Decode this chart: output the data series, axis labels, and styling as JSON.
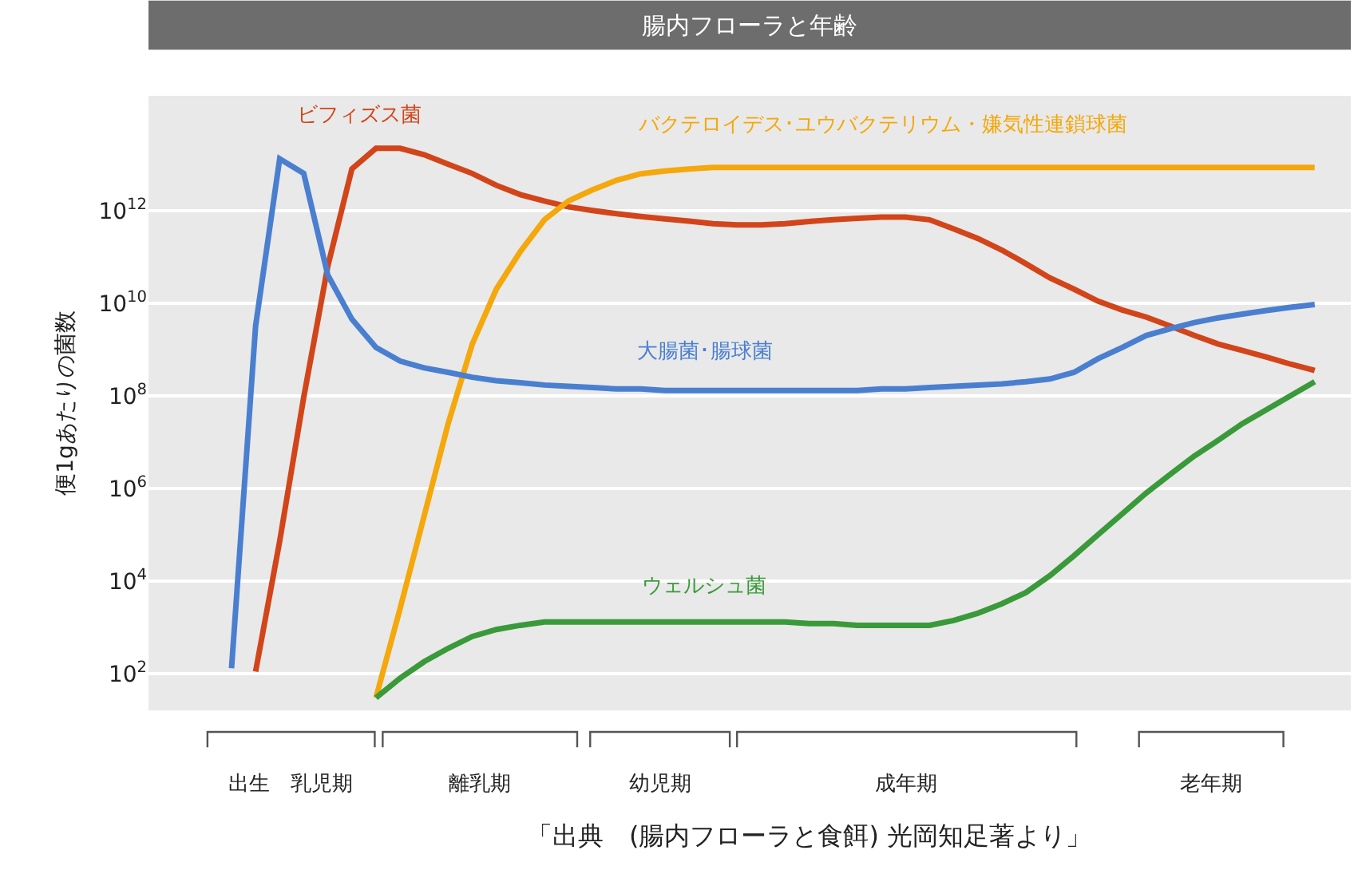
{
  "chart_data": {
    "type": "line",
    "title": "腸内フローラと年齢",
    "ylabel": "便1gあたりの菌数",
    "log": "y",
    "grid": "y",
    "tick_labels": "y",
    "marker": "none",
    "line_style": "solid",
    "categories": [
      null,
      null,
      null,
      null,
      null,
      null,
      null,
      null,
      null,
      null,
      null,
      null,
      null,
      null,
      null,
      null,
      null,
      null,
      null,
      null,
      null,
      null,
      null,
      null,
      null,
      null,
      null,
      null,
      null,
      null,
      null,
      null,
      null,
      null,
      null,
      null,
      null,
      null,
      null,
      null,
      null,
      null,
      null,
      null,
      null,
      null,
      null
    ],
    "ylim": [
      16,
      300000000000000.0
    ],
    "yticks": [
      {
        "value": 100,
        "label": "10$^{2}$"
      },
      {
        "value": 10000,
        "label": "10$^{4}$"
      },
      {
        "value": 1000000,
        "label": "10$^{6}$"
      },
      {
        "value": 100000000,
        "label": "10$^{8}$"
      },
      {
        "value": 10000000000,
        "label": "10$^{10}$"
      },
      {
        "value": 1000000000000,
        "label": "10$^{12}$"
      }
    ],
    "series": [
      {
        "name": "ビフィズス菌",
        "color": "#d2451a",
        "values": [
          null,
          null,
          110.0,
          72000.0,
          93000000.0,
          63000000000.0,
          7900000000000.0,
          22000000000000.0,
          22000000000000.0,
          16000000000000.0,
          10000000000000.0,
          6300000000000.0,
          3500000000000.0,
          2200000000000.0,
          1600000000000.0,
          1200000000000.0,
          1000000000000.0,
          850000000000.0,
          740000000000.0,
          660000000000.0,
          590000000000.0,
          520000000000.0,
          490000000000.0,
          490000000000.0,
          520000000000.0,
          580000000000.0,
          630000000000.0,
          680000000000.0,
          720000000000.0,
          720000000000.0,
          630000000000.0,
          400000000000.0,
          250000000000.0,
          140000000000.0,
          71000000000.0,
          35000000000.0,
          20000000000.0,
          11000000000.0,
          7100000000.0,
          5000000000.0,
          3200000000.0,
          2000000000.0,
          1300000000.0,
          950000000.0,
          680000000.0,
          480000000.0,
          350000000.0
        ]
      },
      {
        "name": "バクテロイデス･ユウバクテリウム・嫌気性連鎖球菌",
        "color": "#f4a80c",
        "values": [
          null,
          null,
          null,
          null,
          null,
          null,
          null,
          30.0,
          2500.0,
          250000.0,
          25000000.0,
          1300000000.0,
          20000000000.0,
          130000000000.0,
          630000000000.0,
          1600000000000.0,
          2800000000000.0,
          4500000000000.0,
          6200000000000.0,
          7100000000000.0,
          7900000000000.0,
          8500000000000.0,
          8500000000000.0,
          8500000000000.0,
          8500000000000.0,
          8500000000000.0,
          8500000000000.0,
          8500000000000.0,
          8500000000000.0,
          8500000000000.0,
          8500000000000.0,
          8500000000000.0,
          8500000000000.0,
          8500000000000.0,
          8500000000000.0,
          8500000000000.0,
          8500000000000.0,
          8500000000000.0,
          8500000000000.0,
          8500000000000.0,
          8500000000000.0,
          8500000000000.0,
          8500000000000.0,
          8500000000000.0,
          8500000000000.0,
          8500000000000.0,
          8500000000000.0
        ]
      },
      {
        "name": "大腸菌･腸球菌",
        "color": "#4a7fd0",
        "values": [
          null,
          130.0,
          3200000000.0,
          13000000000000.0,
          6300000000000.0,
          40000000000.0,
          4500000000.0,
          1100000000.0,
          560000000.0,
          400000000.0,
          320000000.0,
          250000000.0,
          210000000.0,
          190000000.0,
          170000000.0,
          160000000.0,
          150000000.0,
          140000000.0,
          140000000.0,
          130000000.0,
          130000000.0,
          130000000.0,
          130000000.0,
          130000000.0,
          130000000.0,
          130000000.0,
          130000000.0,
          130000000.0,
          140000000.0,
          140000000.0,
          150000000.0,
          160000000.0,
          170000000.0,
          180000000.0,
          200000000.0,
          230000000.0,
          320000000.0,
          630000000.0,
          1100000000.0,
          2000000000.0,
          2800000000.0,
          3800000000.0,
          4800000000.0,
          5800000000.0,
          6900000000.0,
          8100000000.0,
          9300000000.0
        ]
      },
      {
        "name": "ウェルシュ菌",
        "color": "#3a9a3a",
        "values": [
          null,
          null,
          null,
          null,
          null,
          null,
          null,
          30.0,
          79.0,
          180.0,
          350.0,
          630.0,
          890.0,
          1100.0,
          1300.0,
          1300.0,
          1300.0,
          1300.0,
          1300.0,
          1300.0,
          1300.0,
          1300.0,
          1300.0,
          1300.0,
          1300.0,
          1200.0,
          1200.0,
          1100.0,
          1100.0,
          1100.0,
          1100.0,
          1400.0,
          2000.0,
          3200.0,
          5600.0,
          13000.0,
          35000.0,
          100000.0,
          280000.0,
          790000.0,
          2000000.0,
          5000000.0,
          11000000.0,
          25000000.0,
          50000000.0,
          100000000.0,
          200000000.0
        ]
      }
    ],
    "annotations": [
      "出生　乳児期",
      "離乳期",
      "幼児期",
      "成年期",
      "老年期",
      "「出典　(腸内フローラと食餌) 光岡知足著より」"
    ]
  }
}
